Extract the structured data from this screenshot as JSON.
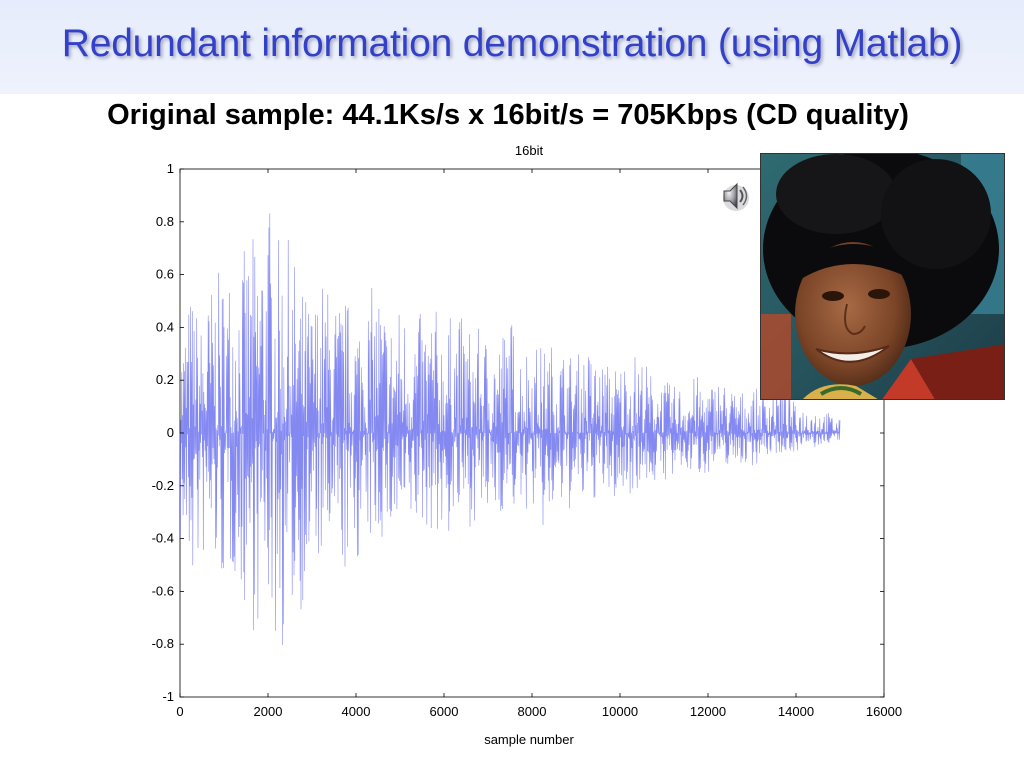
{
  "slide": {
    "title": "Redundant information demonstration (using Matlab)",
    "subtitle": "Original sample: 44.1Ks/s x 16bit/s = 705Kbps (CD quality)"
  },
  "colors": {
    "title": "#3341c9",
    "title_band": "#e6ecfb",
    "waveform": "#6f74f0"
  },
  "icons": {
    "speaker": "speaker-icon",
    "photo": "portrait-photo"
  },
  "chart_data": {
    "type": "line",
    "title": "16bit",
    "xlabel": "sample number",
    "ylabel": "",
    "xlim": [
      0,
      16000
    ],
    "ylim": [
      -1,
      1
    ],
    "xticks": [
      0,
      2000,
      4000,
      6000,
      8000,
      10000,
      12000,
      14000,
      16000
    ],
    "yticks": [
      1,
      0.8,
      0.6,
      0.4,
      0.2,
      0,
      -0.2,
      -0.4,
      -0.6,
      -0.8,
      -1
    ],
    "grid": false,
    "series": [
      {
        "x": [
          0,
          250,
          500,
          750,
          1000,
          1250,
          1500,
          1750,
          2000,
          2250,
          2500,
          2750,
          3000,
          3250,
          3500,
          3750,
          4000,
          4250,
          4500,
          4750,
          5000,
          5250,
          5500,
          5750,
          6000,
          6250,
          6500,
          6750,
          7000,
          7250,
          7500,
          7750,
          8000,
          8250,
          8500,
          8750,
          9000,
          9250,
          9500,
          9750,
          10000,
          10250,
          10500,
          10750,
          11000,
          11250,
          11500,
          11750,
          12000,
          12250,
          12500,
          12750,
          13000,
          13250,
          13500,
          13750,
          14000,
          14250,
          14500,
          14750,
          15000
        ],
        "max": [
          0.35,
          0.55,
          0.42,
          0.6,
          0.62,
          0.68,
          0.7,
          0.78,
          0.92,
          0.73,
          0.74,
          0.56,
          0.5,
          0.6,
          0.52,
          0.52,
          0.48,
          0.52,
          0.6,
          0.44,
          0.5,
          0.48,
          0.45,
          0.5,
          0.42,
          0.47,
          0.43,
          0.4,
          0.38,
          0.38,
          0.46,
          0.34,
          0.36,
          0.33,
          0.35,
          0.32,
          0.3,
          0.33,
          0.28,
          0.27,
          0.27,
          0.32,
          0.3,
          0.22,
          0.2,
          0.18,
          0.2,
          0.22,
          0.18,
          0.22,
          0.18,
          0.16,
          0.18,
          0.15,
          0.23,
          0.2,
          0.1,
          0.11,
          0.1,
          0.08,
          0.05
        ],
        "min": [
          -0.45,
          -0.6,
          -0.5,
          -0.52,
          -0.6,
          -0.55,
          -0.7,
          -0.78,
          -0.65,
          -0.9,
          -0.7,
          -0.68,
          -0.55,
          -0.5,
          -0.5,
          -0.55,
          -0.5,
          -0.45,
          -0.42,
          -0.4,
          -0.45,
          -0.38,
          -0.38,
          -0.37,
          -0.45,
          -0.35,
          -0.37,
          -0.33,
          -0.35,
          -0.31,
          -0.3,
          -0.32,
          -0.28,
          -0.4,
          -0.33,
          -0.3,
          -0.3,
          -0.28,
          -0.25,
          -0.26,
          -0.27,
          -0.23,
          -0.2,
          -0.2,
          -0.18,
          -0.2,
          -0.15,
          -0.17,
          -0.15,
          -0.14,
          -0.12,
          -0.12,
          -0.13,
          -0.1,
          -0.08,
          -0.08,
          -0.07,
          -0.06,
          -0.06,
          -0.04,
          -0.03
        ]
      }
    ]
  }
}
